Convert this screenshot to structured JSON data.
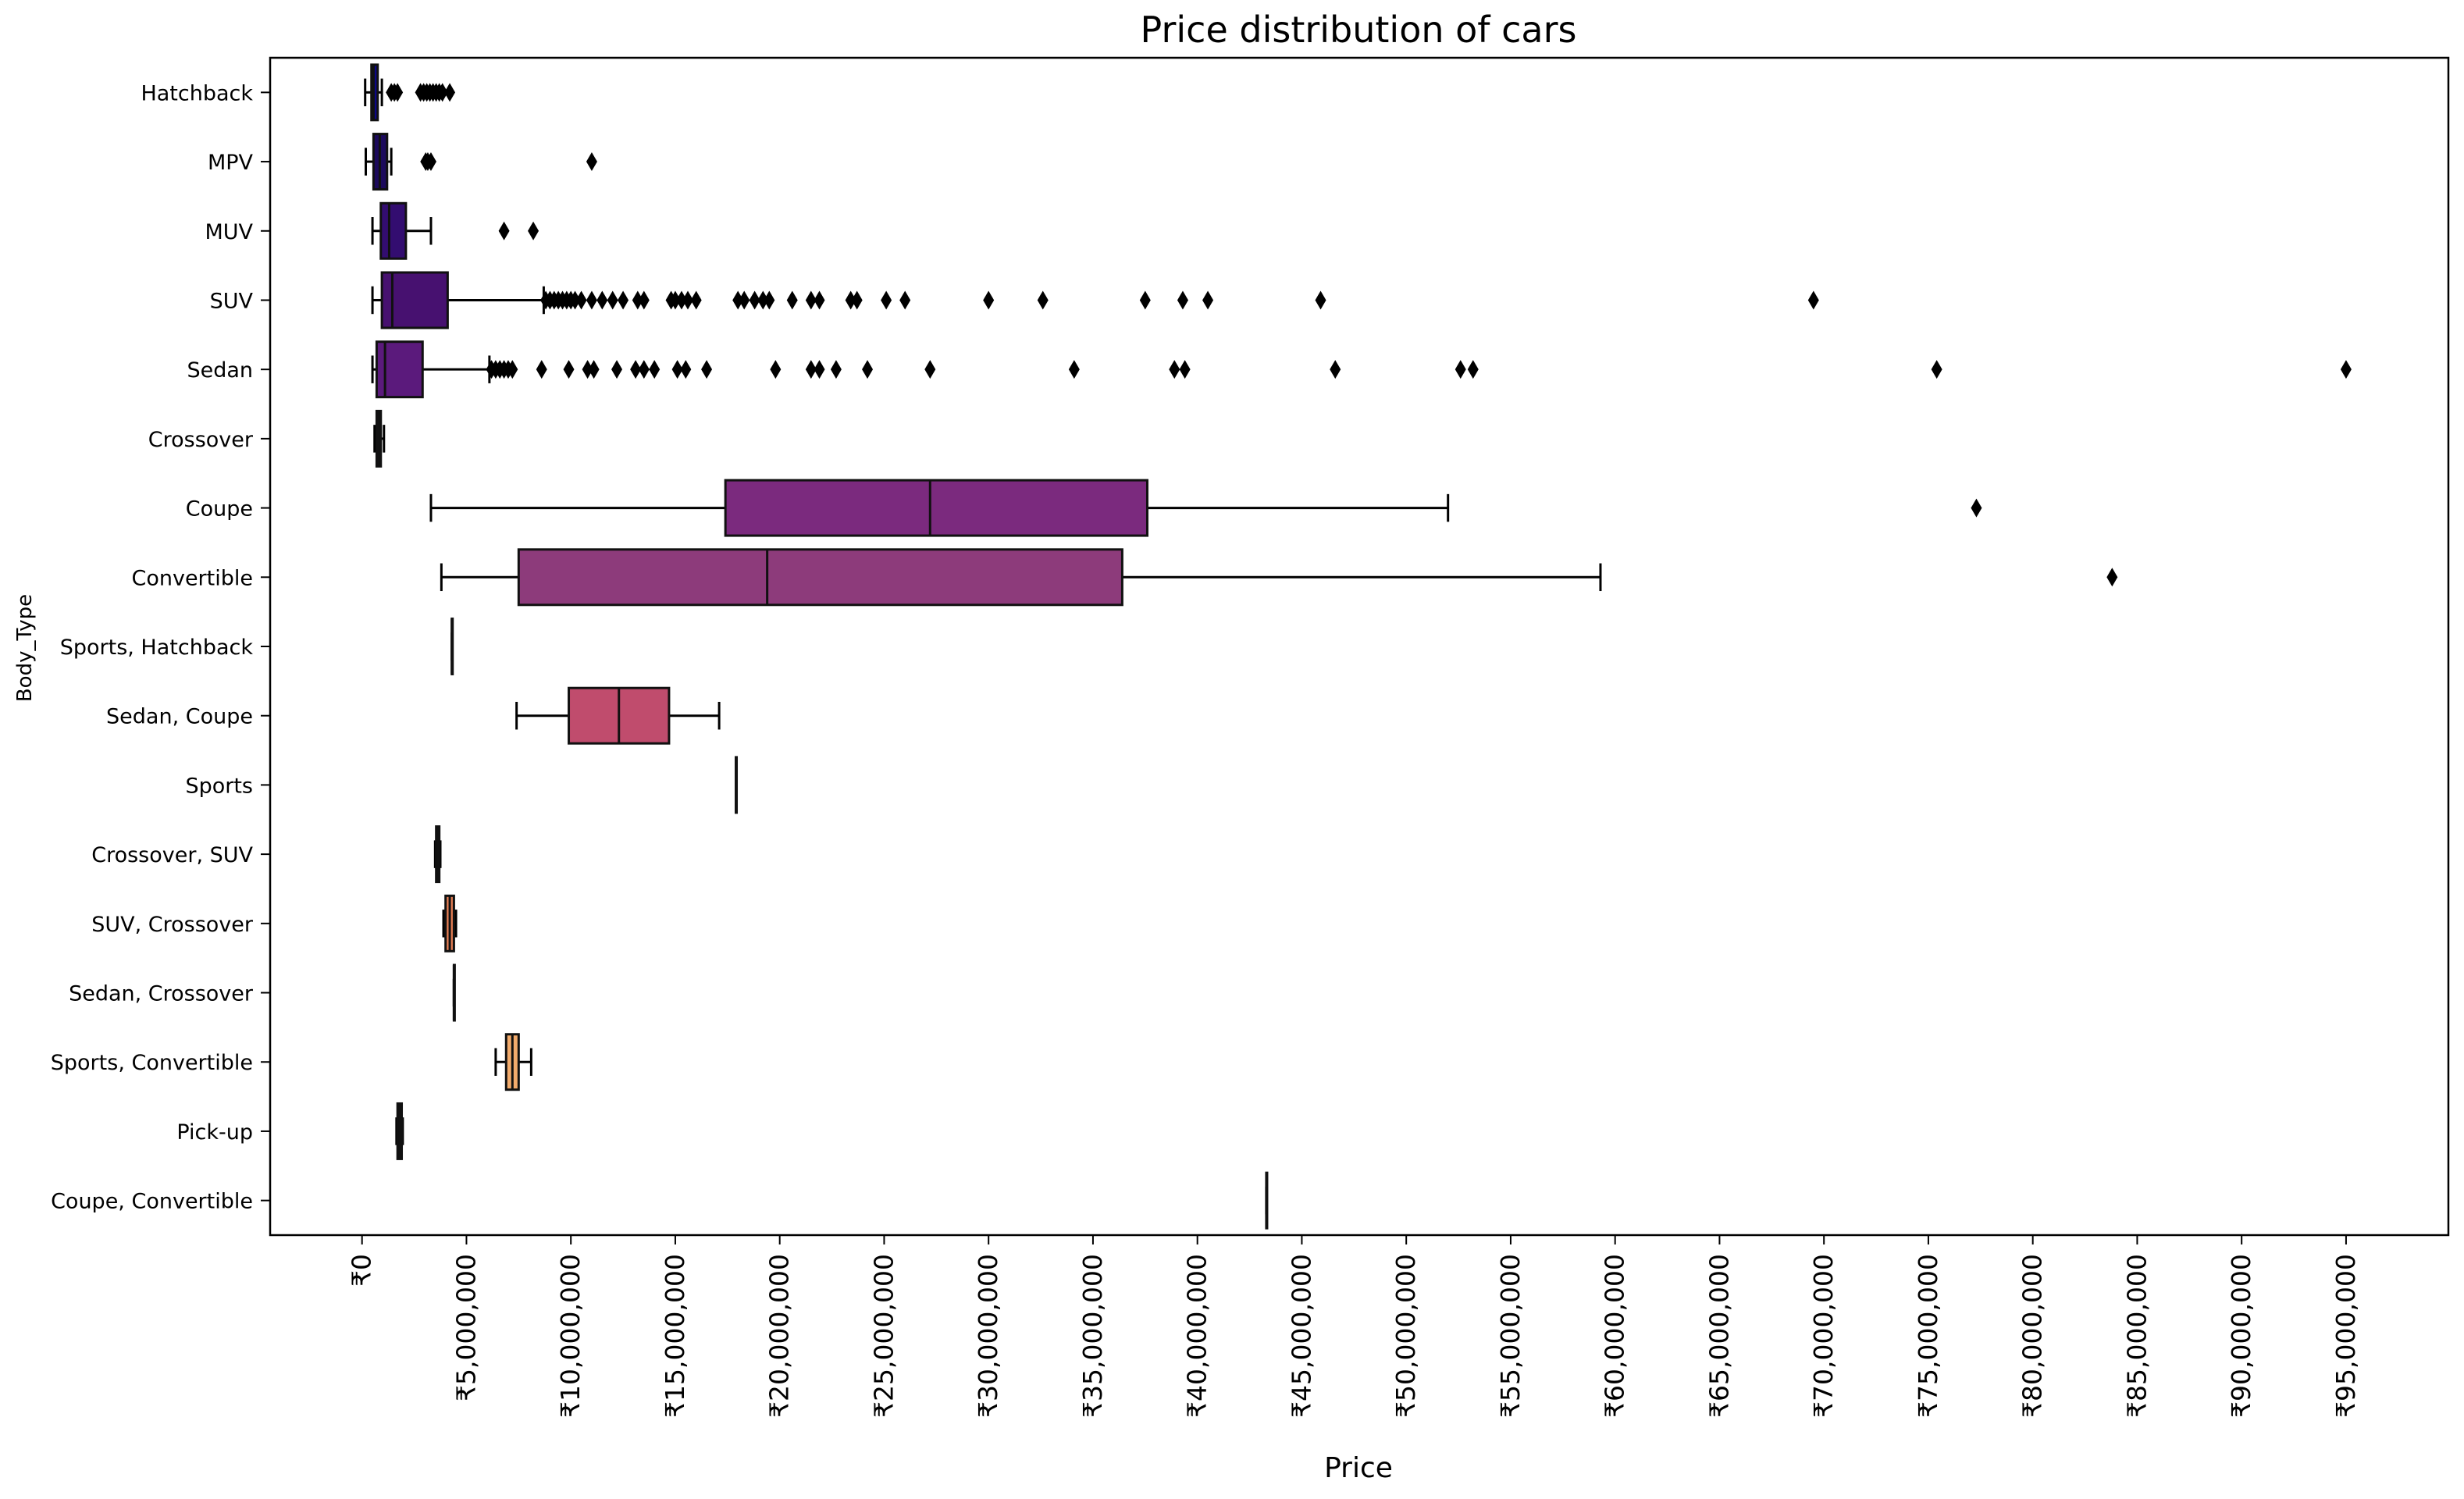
{
  "chart_data": {
    "type": "box",
    "orientation": "horizontal",
    "title": "Price distribution of cars",
    "xlabel": "Price",
    "ylabel": "Body_Type",
    "xlim": [
      -4400000,
      99900000
    ],
    "x_ticks": [
      0,
      5000000,
      10000000,
      15000000,
      20000000,
      25000000,
      30000000,
      35000000,
      40000000,
      45000000,
      50000000,
      55000000,
      60000000,
      65000000,
      70000000,
      75000000,
      80000000,
      85000000,
      90000000,
      95000000
    ],
    "x_tick_labels": [
      "₹0",
      "₹5,000,000",
      "₹10,000,000",
      "₹15,000,000",
      "₹20,000,000",
      "₹25,000,000",
      "₹30,000,000",
      "₹35,000,000",
      "₹40,000,000",
      "₹45,000,000",
      "₹50,000,000",
      "₹55,000,000",
      "₹60,000,000",
      "₹65,000,000",
      "₹70,000,000",
      "₹75,000,000",
      "₹80,000,000",
      "₹85,000,000",
      "₹90,000,000",
      "₹95,000,000"
    ],
    "grid": false,
    "legend": "none",
    "categories": [
      "Hatchback",
      "MPV",
      "MUV",
      "SUV",
      "Sedan",
      "Crossover",
      "Coupe",
      "Convertible",
      "Sports, Hatchback",
      "Sedan, Coupe",
      "Sports",
      "Crossover, SUV",
      "SUV, Crossover",
      "Sedan, Crossover",
      "Sports, Convertible",
      "Pick-up",
      "Coupe, Convertible"
    ],
    "boxes": [
      {
        "category": "Hatchback",
        "whisker_low": 150000,
        "q1": 450000,
        "median": 550000,
        "q3": 750000,
        "whisker_high": 950000,
        "color": "#0d0887",
        "outliers": [
          1400000,
          1550000,
          1700000,
          2800000,
          2950000,
          3100000,
          3250000,
          3400000,
          3550000,
          3700000,
          3850000,
          4200000
        ]
      },
      {
        "category": "MPV",
        "whisker_low": 180000,
        "q1": 550000,
        "median": 850000,
        "q3": 1200000,
        "whisker_high": 1400000,
        "color": "#1c0a5c",
        "outliers": [
          3050000,
          3150000,
          3300000,
          11000000
        ]
      },
      {
        "category": "MUV",
        "whisker_low": 500000,
        "q1": 900000,
        "median": 1300000,
        "q3": 2100000,
        "whisker_high": 3300000,
        "color": "#330d70",
        "outliers": [
          6800000,
          8200000
        ]
      },
      {
        "category": "SUV",
        "whisker_low": 500000,
        "q1": 950000,
        "median": 1450000,
        "q3": 4100000,
        "whisker_high": 8700000,
        "color": "#471170",
        "outliers": [
          8800000,
          9000000,
          9200000,
          9400000,
          9600000,
          9800000,
          10000000,
          10200000,
          10500000,
          11000000,
          11500000,
          12000000,
          12500000,
          13200000,
          13500000,
          14800000,
          15000000,
          15300000,
          15600000,
          16000000,
          18000000,
          18300000,
          18800000,
          19200000,
          19500000,
          20600000,
          21500000,
          21900000,
          23400000,
          23700000,
          25100000,
          26000000,
          30000000,
          32600000,
          37500000,
          39300000,
          40500000,
          45900000,
          69500000
        ]
      },
      {
        "category": "Sedan",
        "whisker_low": 500000,
        "q1": 700000,
        "median": 1100000,
        "q3": 2900000,
        "whisker_high": 6100000,
        "color": "#5b1a7c",
        "outliers": [
          6200000,
          6400000,
          6600000,
          6800000,
          7000000,
          7200000,
          8600000,
          9900000,
          10800000,
          11100000,
          12200000,
          13100000,
          13500000,
          14000000,
          15100000,
          15500000,
          16500000,
          19800000,
          21500000,
          21900000,
          22700000,
          24200000,
          27200000,
          34100000,
          38900000,
          39400000,
          46600000,
          52600000,
          53200000,
          75400000,
          95000000
        ]
      },
      {
        "category": "Crossover",
        "whisker_low": 600000,
        "q1": 700000,
        "median": 800000,
        "q3": 900000,
        "whisker_high": 1050000,
        "color": "#6c2184",
        "outliers": []
      },
      {
        "category": "Coupe",
        "whisker_low": 3300000,
        "q1": 17400000,
        "median": 27200000,
        "q3": 37600000,
        "whisker_high": 52000000,
        "color": "#7b2a7e",
        "outliers": [
          77300000
        ]
      },
      {
        "category": "Convertible",
        "whisker_low": 3800000,
        "q1": 7500000,
        "median": 19400000,
        "q3": 36400000,
        "whisker_high": 59300000,
        "color": "#8d3b7b",
        "outliers": [
          83800000
        ]
      },
      {
        "category": "Sports, Hatchback",
        "whisker_low": 4300000,
        "q1": 4300000,
        "median": 4300000,
        "q3": 4300000,
        "whisker_high": 4300000,
        "color": "#a04278",
        "outliers": []
      },
      {
        "category": "Sedan, Coupe",
        "whisker_low": 7400000,
        "q1": 9900000,
        "median": 12300000,
        "q3": 14700000,
        "whisker_high": 17100000,
        "color": "#c04c6d",
        "outliers": []
      },
      {
        "category": "Sports",
        "whisker_low": 17900000,
        "q1": 17900000,
        "median": 17900000,
        "q3": 17900000,
        "whisker_high": 17900000,
        "color": "#d05a63",
        "outliers": []
      },
      {
        "category": "Crossover, SUV",
        "whisker_low": 3500000,
        "q1": 3550000,
        "median": 3650000,
        "q3": 3700000,
        "whisker_high": 3750000,
        "color": "#dc6b5a",
        "outliers": []
      },
      {
        "category": "SUV, Crossover",
        "whisker_low": 3900000,
        "q1": 4000000,
        "median": 4200000,
        "q3": 4400000,
        "whisker_high": 4500000,
        "color": "#e57e54",
        "outliers": []
      },
      {
        "category": "Sedan, Crossover",
        "whisker_low": 4400000,
        "q1": 4400000,
        "median": 4400000,
        "q3": 4400000,
        "whisker_high": 4400000,
        "color": "#ec9450",
        "outliers": []
      },
      {
        "category": "Sports, Convertible",
        "whisker_low": 6400000,
        "q1": 6900000,
        "median": 7200000,
        "q3": 7500000,
        "whisker_high": 8100000,
        "color": "#f2ab6c",
        "outliers": []
      },
      {
        "category": "Pick-up",
        "whisker_low": 1650000,
        "q1": 1700000,
        "median": 1800000,
        "q3": 1900000,
        "whisker_high": 1950000,
        "color": "#f6c38a",
        "outliers": []
      },
      {
        "category": "Coupe, Convertible",
        "whisker_low": 43300000,
        "q1": 43300000,
        "median": 43300000,
        "q3": 43300000,
        "whisker_high": 43300000,
        "color": "#f9dba8",
        "outliers": []
      }
    ]
  }
}
